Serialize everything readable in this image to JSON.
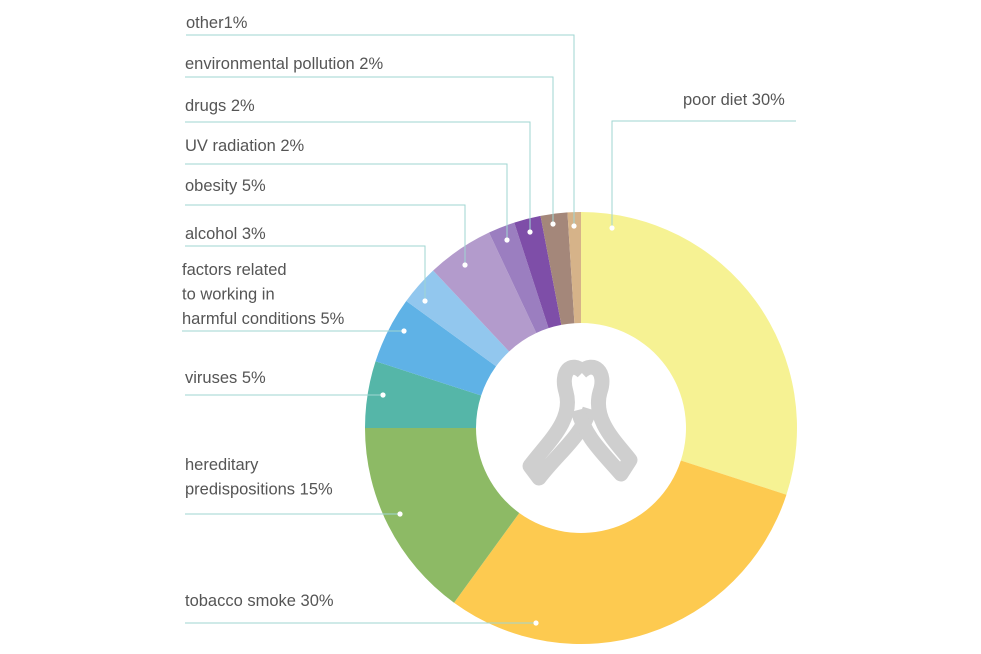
{
  "chart_data": {
    "type": "pie",
    "variant": "donut",
    "title": "",
    "center_icon": "awareness-ribbon-icon",
    "start": "top",
    "direction": "clockwise",
    "slices": [
      {
        "key": "poor-diet",
        "label": [
          "poor diet 30%"
        ],
        "value": 30,
        "color": "#f6f293"
      },
      {
        "key": "tobacco-smoke",
        "label": [
          "tobacco smoke 30%"
        ],
        "value": 30,
        "color": "#fdca50"
      },
      {
        "key": "hereditary-predispositions",
        "label": [
          "hereditary",
          "predispositions 15%"
        ],
        "value": 15,
        "color": "#8dba65"
      },
      {
        "key": "viruses",
        "label": [
          "viruses 5%"
        ],
        "value": 5,
        "color": "#55b6a8"
      },
      {
        "key": "harmful-working-conditions",
        "label": [
          "factors related",
          "to working in",
          "harmful conditions 5%"
        ],
        "value": 5,
        "color": "#5fb2e6"
      },
      {
        "key": "alcohol",
        "label": [
          "alcohol 3%"
        ],
        "value": 3,
        "color": "#92c7ee"
      },
      {
        "key": "obesity",
        "label": [
          "obesity 5%"
        ],
        "value": 5,
        "color": "#b39bcc"
      },
      {
        "key": "uv-radiation",
        "label": [
          "UV radiation 2%"
        ],
        "value": 2,
        "color": "#9b7ec0"
      },
      {
        "key": "drugs",
        "label": [
          "drugs 2%"
        ],
        "value": 2,
        "color": "#7e4ea8"
      },
      {
        "key": "environmental-pollution",
        "label": [
          "environmental pollution 2%"
        ],
        "value": 2,
        "color": "#a4877a"
      },
      {
        "key": "other",
        "label": [
          "other1%"
        ],
        "value": 1,
        "color": "#d6b389"
      }
    ],
    "colors": {
      "leader": "#9fd6d2",
      "ribbon": "#cfcfcf",
      "text": "#555555"
    }
  }
}
